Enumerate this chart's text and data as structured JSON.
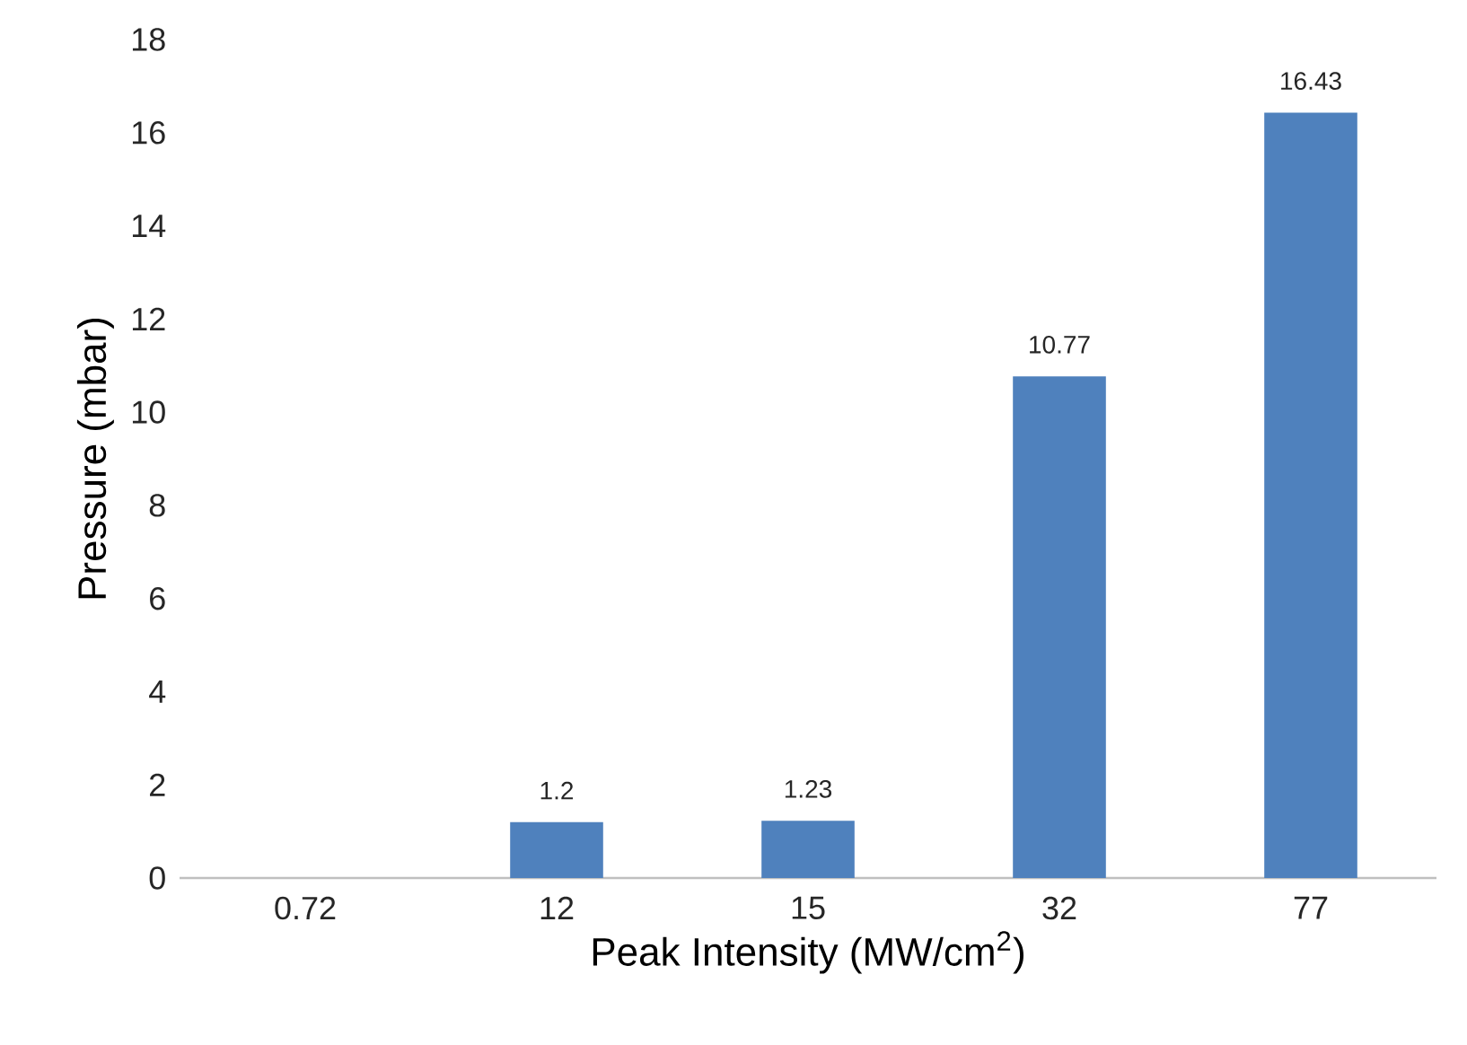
{
  "chart_data": {
    "type": "bar",
    "xlabel": "Peak Intensity (MW/cm$^{2}$)",
    "ylabel": "Pressure (mbar)",
    "categories": [
      "0.72",
      "12",
      "15",
      "32",
      "77"
    ],
    "values": [
      0,
      1.2,
      1.23,
      10.77,
      16.43
    ],
    "value_labels": [
      null,
      "1.2",
      "1.23",
      "10.77",
      "16.43"
    ],
    "color": "#4f81bd",
    "ylim": [
      0,
      18
    ],
    "yticks": [
      0,
      2,
      4,
      6,
      8,
      10,
      12,
      14,
      16,
      18
    ]
  }
}
